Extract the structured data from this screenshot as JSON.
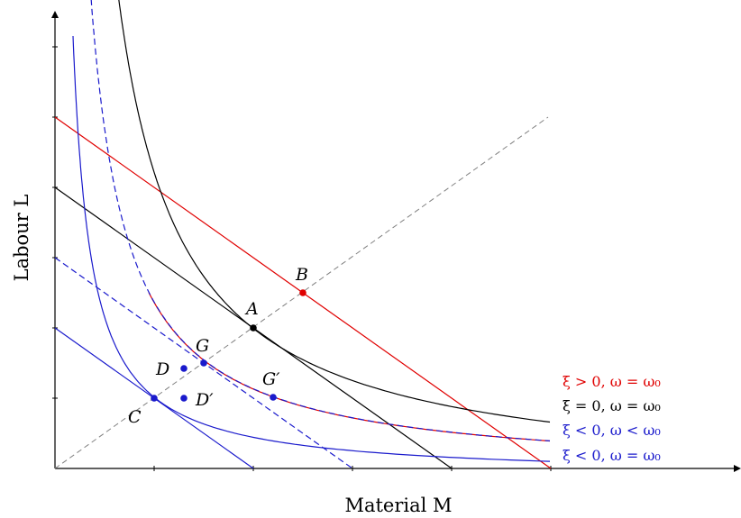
{
  "diagram": {
    "x_axis_title": "Material M",
    "y_axis_title": "Labour L",
    "points": {
      "A": "A",
      "B": "B",
      "C": "C",
      "D": "D",
      "D_prime": "D′",
      "G": "G",
      "G_prime": "G′"
    },
    "legend": [
      {
        "text": "ξ > 0, ω = ω₀",
        "color": "#e00000"
      },
      {
        "text": "ξ = 0, ω = ω₀",
        "color": "#000000"
      },
      {
        "text": "ξ < 0, ω < ω₀",
        "color": "#1a1acc"
      },
      {
        "text": "ξ < 0, ω = ω₀",
        "color": "#1a1acc"
      }
    ],
    "colors": {
      "red": "#e00000",
      "black": "#000000",
      "blue": "#1a1acc",
      "dashed_ray": "#808080"
    }
  }
}
